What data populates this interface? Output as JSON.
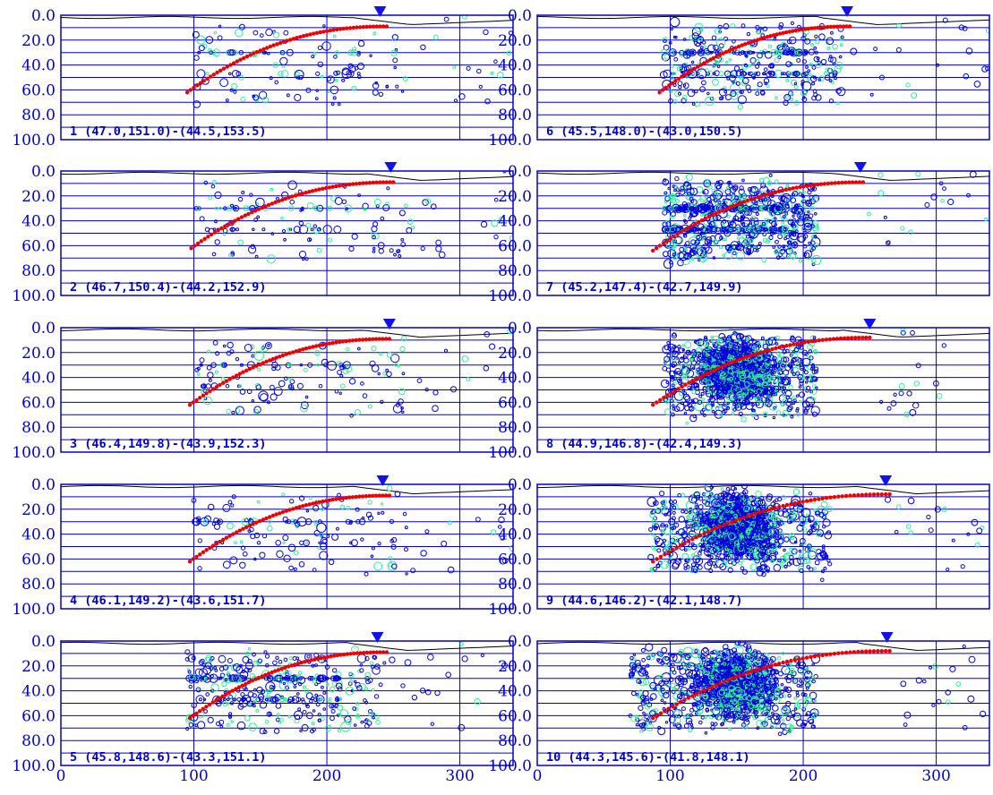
{
  "colors": {
    "frame": "#0000cc",
    "grid": "#0000cc",
    "label": "#0000cc",
    "quake_blue": "#0000dd",
    "quake_green": "#33ee99",
    "slab_curve": "#ee0000",
    "topography": "#000000",
    "marker": "#1111ee"
  },
  "chart_data": {
    "type": "scatter",
    "layout": "5 rows x 2 columns of depth cross-section panels",
    "x_axis": {
      "range": [
        0,
        340
      ],
      "ticks": [
        0,
        100,
        200,
        300
      ],
      "tick_labels": [
        "0",
        "100",
        "200",
        "300"
      ],
      "vertical_gridlines": [
        100,
        200,
        300
      ]
    },
    "y_axis": {
      "range": [
        0,
        100
      ],
      "inverted": true,
      "ticks": [
        0,
        20,
        40,
        60,
        80,
        100
      ],
      "tick_labels": [
        "0.0",
        "20.0",
        "40.0",
        "60.0",
        "80.0",
        "100.0"
      ],
      "horizontal_gridlines": [
        10,
        20,
        30,
        40,
        50,
        60,
        70,
        80,
        90
      ]
    },
    "marker_icon": "inverted-triangle-icon",
    "panels": [
      {
        "id": 1,
        "label": "1 (47.0,151.0)-(44.5,153.5)",
        "marker_x": 240,
        "curve": {
          "x_start": 95,
          "x_end": 245,
          "depth_start": 62,
          "depth_end": 9
        },
        "density": "sparse",
        "cluster_x": [
          100,
          260
        ]
      },
      {
        "id": 2,
        "label": "2 (46.7,150.4)-(44.2,152.9)",
        "marker_x": 248,
        "curve": {
          "x_start": 98,
          "x_end": 250,
          "depth_start": 62,
          "depth_end": 9
        },
        "density": "sparse",
        "cluster_x": [
          100,
          260
        ]
      },
      {
        "id": 3,
        "label": "3 (46.4,149.8)-(43.9,152.3)",
        "marker_x": 247,
        "curve": {
          "x_start": 97,
          "x_end": 247,
          "depth_start": 62,
          "depth_end": 9
        },
        "density": "sparse",
        "cluster_x": [
          100,
          260
        ]
      },
      {
        "id": 4,
        "label": "4 (46.1,149.2)-(43.6,151.7)",
        "marker_x": 242,
        "curve": {
          "x_start": 97,
          "x_end": 247,
          "depth_start": 62,
          "depth_end": 9
        },
        "density": "sparse",
        "cluster_x": [
          100,
          260
        ]
      },
      {
        "id": 5,
        "label": "5 (45.8,148.6)-(43.3,151.1)",
        "marker_x": 238,
        "curve": {
          "x_start": 97,
          "x_end": 245,
          "depth_start": 62,
          "depth_end": 9
        },
        "density": "moderate",
        "cluster_x": [
          95,
          240
        ]
      },
      {
        "id": 6,
        "label": "6 (45.5,148.0)-(43.0,150.5)",
        "marker_x": 233,
        "curve": {
          "x_start": 92,
          "x_end": 235,
          "depth_start": 62,
          "depth_end": 9
        },
        "density": "moderate",
        "cluster_x": [
          95,
          230
        ]
      },
      {
        "id": 7,
        "label": "7 (45.2,147.4)-(42.7,149.9)",
        "marker_x": 243,
        "curve": {
          "x_start": 87,
          "x_end": 245,
          "depth_start": 64,
          "depth_end": 9
        },
        "density": "dense",
        "cluster_x": [
          95,
          210
        ]
      },
      {
        "id": 8,
        "label": "8 (44.9,146.8)-(42.4,149.3)",
        "marker_x": 250,
        "curve": {
          "x_start": 87,
          "x_end": 250,
          "depth_start": 62,
          "depth_end": 8
        },
        "density": "very dense",
        "cluster_x": [
          95,
          210
        ]
      },
      {
        "id": 9,
        "label": "9 (44.6,146.2)-(42.1,148.7)",
        "marker_x": 262,
        "curve": {
          "x_start": 87,
          "x_end": 265,
          "depth_start": 62,
          "depth_end": 8
        },
        "density": "very dense",
        "cluster_x": [
          85,
          220
        ]
      },
      {
        "id": 10,
        "label": "10 (44.3,145.6)-(41.8,148.1)",
        "marker_x": 263,
        "curve": {
          "x_start": 87,
          "x_end": 265,
          "depth_start": 62,
          "depth_end": 8
        },
        "density": "very dense",
        "cluster_x": [
          70,
          210
        ]
      }
    ]
  }
}
